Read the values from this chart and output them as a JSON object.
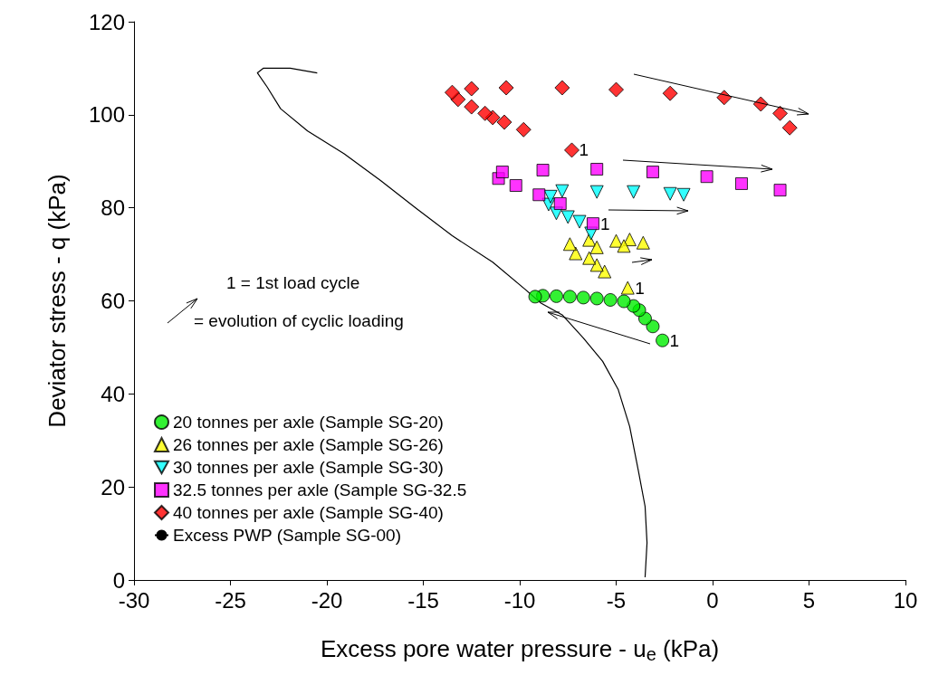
{
  "chart_data": {
    "type": "scatter",
    "xlabel": "Excess pore water pressure - u$_{e}$ (kPa)",
    "ylabel": "Deviator stress - q (kPa)",
    "xlim": [
      -30,
      10
    ],
    "xticks": [
      -30,
      -25,
      -20,
      -15,
      -10,
      -5,
      0,
      5,
      10
    ],
    "ylim": [
      0,
      120
    ],
    "yticks": [
      0,
      20,
      40,
      60,
      80,
      100,
      120
    ],
    "grid": false,
    "legend": "bottom left",
    "series": [
      {
        "name": "20 tonnes per axle (Sample SG-20)",
        "color": "#00ee00",
        "marker": "circle",
        "x": [
          -2.6,
          -3.1,
          -3.5,
          -3.8,
          -4.1,
          -4.6,
          -5.3,
          -6,
          -6.7,
          -7.4,
          -8.1,
          -8.8,
          -9.2
        ],
        "values": [
          51.5,
          54.5,
          56.2,
          58,
          58.9,
          59.9,
          60.2,
          60.5,
          60.7,
          60.9,
          61,
          61.1,
          60.9
        ]
      },
      {
        "name": "26 tonnes per axle (Sample SG-26)",
        "color": "#ffff00",
        "marker": "triangle",
        "x": [
          -4.4,
          -5.6,
          -6,
          -6.4,
          -7.1,
          -7.4,
          -6.4,
          -5,
          -4.3,
          -3.6,
          -4.6,
          -6
        ],
        "values": [
          62.8,
          66.3,
          67.7,
          69.2,
          70.2,
          72.2,
          73.1,
          72.9,
          73.2,
          72.5,
          71.8,
          71.5
        ]
      },
      {
        "name": "30 tonnes per axle (Sample SG-30)",
        "color": "#00ffff",
        "marker": "triangle-down",
        "x": [
          -6.3,
          -6.9,
          -7.5,
          -8.1,
          -8.5,
          -8.4,
          -7.8,
          -6,
          -4.1,
          -2.2,
          -1.5
        ],
        "values": [
          74.5,
          77,
          78,
          78.8,
          80.7,
          82.4,
          83.6,
          83.4,
          83.4,
          83,
          82.8
        ]
      },
      {
        "name": "32.5 tonnes per axle (Sample SG-32.5",
        "color": "#ff00ff",
        "marker": "square",
        "x": [
          -6.2,
          -7.9,
          -9,
          -10.2,
          -11.1,
          -10.9,
          -8.8,
          -6,
          -3.1,
          -0.3,
          1.5,
          3.5
        ],
        "values": [
          76.6,
          80.9,
          82.8,
          84.8,
          86.3,
          87.7,
          88.1,
          88.3,
          87.7,
          86.7,
          85.2,
          83.8
        ]
      },
      {
        "name": "40 tonnes per axle (Sample SG-40)",
        "color": "#ff0000",
        "marker": "diamond",
        "x": [
          -7.3,
          -9.8,
          -10.8,
          -11.4,
          -11.8,
          -12.5,
          -13.2,
          -13.5,
          -12.5,
          -10.7,
          -7.8,
          -5,
          -2.2,
          0.6,
          2.5,
          3.5,
          4
        ],
        "values": [
          92.4,
          96.8,
          98.4,
          99.4,
          100.3,
          101.7,
          103.3,
          104.8,
          105.6,
          105.8,
          105.8,
          105.4,
          104.6,
          103.7,
          102.3,
          100.3,
          97.2
        ]
      },
      {
        "name": "Excess PWP (Sample SG-00)",
        "type": "line",
        "color": "#000000",
        "marker": "none",
        "line_style": "solid",
        "x": [
          -3.5,
          -3.4,
          -3.5,
          -3.85,
          -4.3,
          -4.9,
          -5.7,
          -6.7,
          -7.8,
          -8.9,
          -9.7,
          -11.4,
          -13.5,
          -15.4,
          -17.2,
          -19.1,
          -21,
          -22.4,
          -23.1,
          -23.6,
          -23.3,
          -21.9,
          -20.5
        ],
        "values": [
          0.6,
          8,
          15.8,
          23.5,
          33,
          41,
          47,
          52,
          57,
          59.5,
          62.4,
          68.3,
          74,
          80,
          85.8,
          91.6,
          96.5,
          101.3,
          106,
          109,
          110,
          110,
          109
        ]
      }
    ],
    "annotations": [
      "1 = 1st load cycle",
      "= evolution of cyclic loading",
      {
        "text": "1",
        "x": -2.6,
        "y": 51.5
      },
      {
        "text": "1",
        "x": -4.4,
        "y": 62.8
      },
      {
        "text": "1",
        "x": -6.2,
        "y": 76.6
      },
      {
        "text": "1",
        "x": -7.3,
        "y": 92.4
      }
    ]
  }
}
